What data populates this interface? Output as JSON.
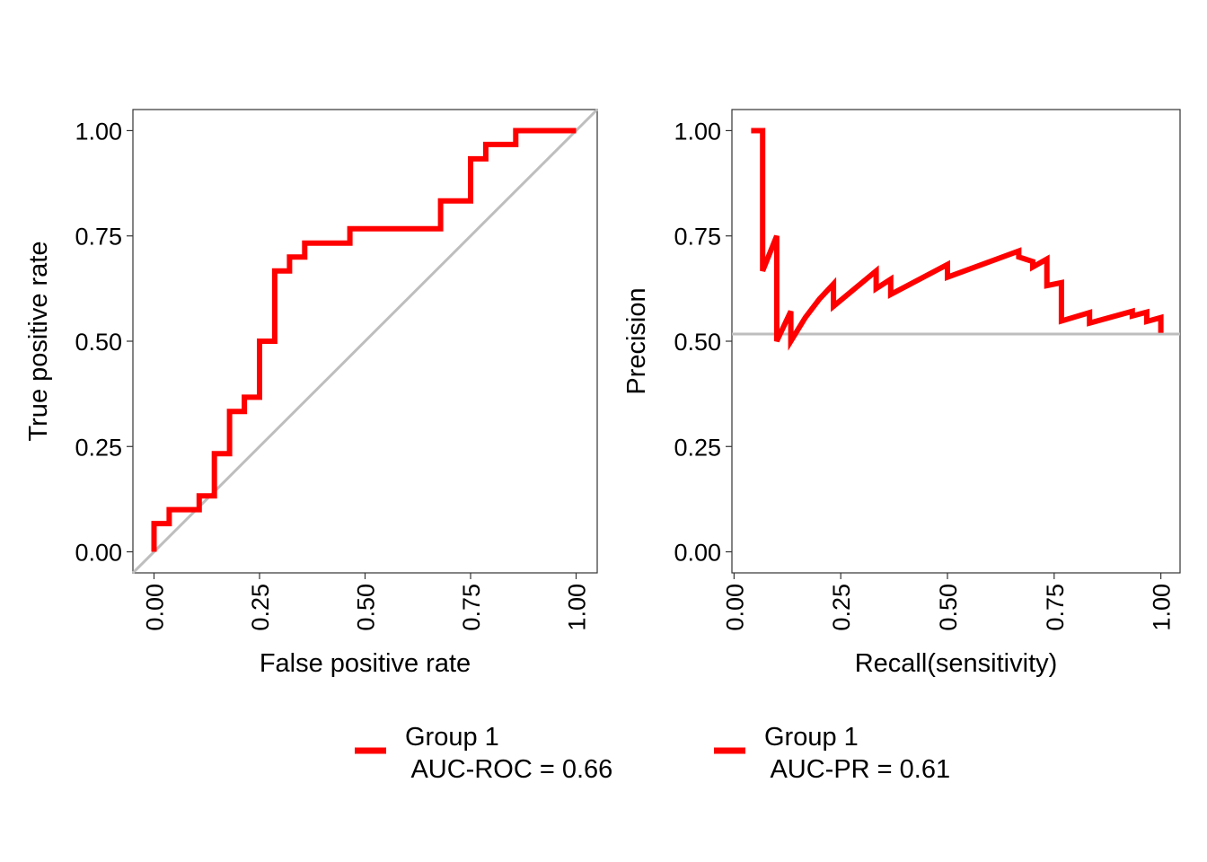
{
  "chart_data": [
    {
      "type": "line",
      "xlabel": "False positive rate",
      "ylabel": "True positive rate",
      "xlim": [
        -0.05,
        1.05
      ],
      "ylim": [
        -0.05,
        1.05
      ],
      "xticks": [
        0,
        0.25,
        0.5,
        0.75,
        1
      ],
      "yticks": [
        0,
        0.25,
        0.5,
        0.75,
        1
      ],
      "xtick_labels": [
        "0.00",
        "0.25",
        "0.50",
        "0.75",
        "1.00"
      ],
      "ytick_labels": [
        "0.00",
        "0.25",
        "0.50",
        "0.75",
        "1.00"
      ],
      "grid": false,
      "reference_line": {
        "from": [
          -0.05,
          -0.05
        ],
        "to": [
          1.05,
          1.05
        ],
        "color": "#BEBEBE"
      },
      "series": [
        {
          "color": "#FF0000",
          "x": [
            0,
            0,
            0.036,
            0.036,
            0.107,
            0.107,
            0.143,
            0.143,
            0.179,
            0.179,
            0.214,
            0.214,
            0.25,
            0.25,
            0.286,
            0.286,
            0.321,
            0.321,
            0.357,
            0.357,
            0.464,
            0.464,
            0.679,
            0.679,
            0.75,
            0.75,
            0.786,
            0.786,
            0.857,
            0.857,
            1.0
          ],
          "y": [
            0,
            0.067,
            0.067,
            0.1,
            0.1,
            0.133,
            0.133,
            0.233,
            0.233,
            0.333,
            0.333,
            0.367,
            0.367,
            0.5,
            0.5,
            0.667,
            0.667,
            0.7,
            0.7,
            0.733,
            0.733,
            0.767,
            0.767,
            0.833,
            0.833,
            0.933,
            0.933,
            0.967,
            0.967,
            1.0,
            1.0
          ]
        }
      ],
      "legend": {
        "label": "Group 1\n AUC-ROC = 0.66",
        "color": "#FF0000",
        "placement": "bottom"
      }
    },
    {
      "type": "line",
      "xlabel": "Recall(sensitivity)",
      "ylabel": "Precision",
      "xlim": [
        -0.005,
        1.045
      ],
      "ylim": [
        -0.05,
        1.05
      ],
      "xticks": [
        0,
        0.25,
        0.5,
        0.75,
        1
      ],
      "yticks": [
        0,
        0.25,
        0.5,
        0.75,
        1
      ],
      "xtick_labels": [
        "0.00",
        "0.25",
        "0.50",
        "0.75",
        "1.00"
      ],
      "ytick_labels": [
        "0.00",
        "0.25",
        "0.50",
        "0.75",
        "1.00"
      ],
      "grid": false,
      "baseline": {
        "y": 0.517,
        "color": "#BEBEBE"
      },
      "series": [
        {
          "color": "#FF0000",
          "x": [
            0.04,
            0.067,
            0.067,
            0.1,
            0.1,
            0.133,
            0.133,
            0.167,
            0.2,
            0.233,
            0.233,
            0.333,
            0.333,
            0.367,
            0.367,
            0.5,
            0.5,
            0.667,
            0.667,
            0.7,
            0.7,
            0.733,
            0.733,
            0.767,
            0.767,
            0.833,
            0.833,
            0.933,
            0.933,
            0.967,
            0.967,
            1.0,
            1.0
          ],
          "y": [
            1.0,
            1.0,
            0.667,
            0.75,
            0.5,
            0.571,
            0.5,
            0.556,
            0.6,
            0.636,
            0.583,
            0.667,
            0.625,
            0.647,
            0.611,
            0.682,
            0.652,
            0.714,
            0.7,
            0.689,
            0.676,
            0.695,
            0.632,
            0.639,
            0.548,
            0.568,
            0.543,
            0.571,
            0.56,
            0.569,
            0.547,
            0.556,
            0.52
          ]
        }
      ],
      "legend": {
        "label": "Group 1\n AUC-PR = 0.61",
        "color": "#FF0000",
        "placement": "bottom"
      }
    }
  ]
}
